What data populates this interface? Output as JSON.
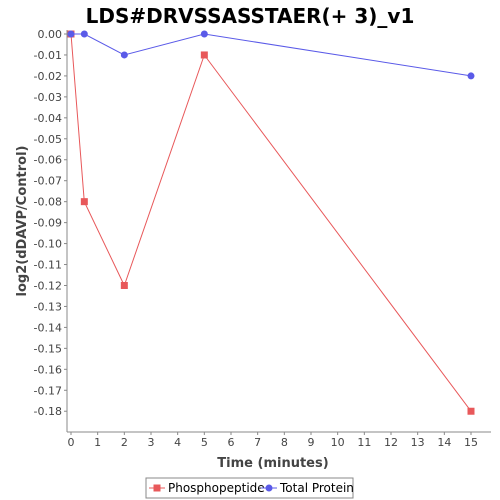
{
  "chart_data": {
    "type": "line",
    "title": "LDS#DRVSSASSTAER(+ 3)_v1",
    "xlabel": "Time (minutes)",
    "ylabel": "log2(dDAVP/Control)",
    "xlim": [
      0,
      15.6
    ],
    "ylim": [
      -0.188,
      0.0
    ],
    "x_ticks": [
      "0",
      "1",
      "2",
      "3",
      "4",
      "5",
      "6",
      "7",
      "8",
      "9",
      "10",
      "11",
      "12",
      "13",
      "14",
      "15"
    ],
    "y_ticks": [
      "0.00",
      "-0.01",
      "-0.02",
      "-0.03",
      "-0.04",
      "-0.05",
      "-0.06",
      "-0.07",
      "-0.08",
      "-0.09",
      "-0.10",
      "-0.11",
      "-0.12",
      "-0.13",
      "-0.14",
      "-0.15",
      "-0.16",
      "-0.17",
      "-0.18"
    ],
    "grid": false,
    "legend_position": "bottom",
    "series": [
      {
        "name": "Phosphopeptide",
        "color": "#e8585a",
        "marker": "square",
        "points": [
          [
            0,
            0.0
          ],
          [
            0.5,
            -0.08
          ],
          [
            2,
            -0.12
          ],
          [
            5,
            -0.01
          ],
          [
            15,
            -0.18
          ]
        ]
      },
      {
        "name": "Total Protein",
        "color": "#5a5ae8",
        "marker": "circle",
        "points": [
          [
            0,
            0.0
          ],
          [
            0.5,
            0.0
          ],
          [
            2,
            -0.01
          ],
          [
            5,
            0.0
          ],
          [
            15,
            -0.02
          ]
        ]
      }
    ]
  }
}
